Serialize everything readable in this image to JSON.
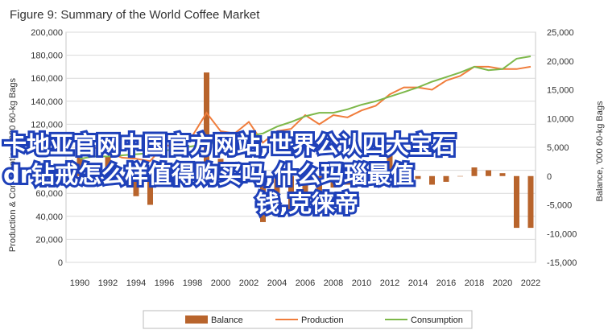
{
  "figure": {
    "title": "Figure 9: Summary of the World Coffee Market"
  },
  "overlay": {
    "lines": [
      "卡地亚官网中国官方网站,世界公认四大宝石",
      "dr钻戒怎么样值得购买吗,什么玛瑙最值",
      "钱,克徕帝"
    ]
  },
  "colors": {
    "balance": "#b8642c",
    "production": "#f07d3c",
    "consumption": "#7db84a",
    "grid": "#d9d9d9"
  },
  "chart_data": {
    "type": "bar",
    "title": "Figure 9: Summary of the World Coffee Market",
    "ylabel_left": "Production & Consumption, '000 60-kg Bags",
    "ylabel_right": "Balance, '000 60-kg Bags",
    "ylim_left": [
      0,
      200000
    ],
    "ylim_right": [
      -15000,
      25000
    ],
    "left_ticks": [
      "200,000",
      "180,000",
      "160,000",
      "140,000",
      "120,000",
      "100,000",
      "80,000",
      "60,000",
      "40,000",
      "20,000",
      "0"
    ],
    "right_ticks": [
      "25,000",
      "20,000",
      "15,000",
      "10,000",
      "5,000",
      "0",
      "-5,000",
      "-10,000",
      "-15,000"
    ],
    "x_ticks": [
      "1990",
      "1992",
      "1994",
      "1996",
      "1998",
      "2000",
      "2002",
      "2004",
      "2006",
      "2008",
      "2010",
      "2012",
      "2014",
      "2016",
      "2018",
      "2020",
      "2022"
    ],
    "x": [
      1990,
      1991,
      1992,
      1993,
      1994,
      1995,
      1996,
      1997,
      1998,
      1999,
      2000,
      2001,
      2002,
      2003,
      2004,
      2005,
      2006,
      2007,
      2008,
      2009,
      2010,
      2011,
      2012,
      2013,
      2014,
      2015,
      2016,
      2017,
      2018,
      2019,
      2020,
      2021,
      2022
    ],
    "grid": true,
    "legend_position": "bottom",
    "series": [
      {
        "name": "Balance",
        "type": "bar",
        "axis": "right",
        "values": [
          3500,
          2000,
          3500,
          -1500,
          -3500,
          -5000,
          -1000,
          500,
          2500,
          18000,
          3000,
          -500,
          0,
          -8000,
          -6000,
          -6500,
          -4500,
          -6500,
          -2000,
          -1500,
          2000,
          1500,
          4000,
          2500,
          -500,
          -1500,
          -1000,
          0,
          1500,
          1000,
          500,
          -9000,
          -9000
        ]
      },
      {
        "name": "Production",
        "type": "line",
        "axis": "left",
        "values": [
          93000,
          100000,
          96000,
          91000,
          90000,
          88000,
          102000,
          100000,
          110000,
          130000,
          114000,
          112000,
          122000,
          104000,
          114000,
          116000,
          128000,
          120000,
          128000,
          126000,
          132000,
          136000,
          146000,
          152000,
          152000,
          150000,
          158000,
          162000,
          170000,
          170000,
          168000,
          168000,
          170000
        ]
      },
      {
        "name": "Consumption",
        "type": "line",
        "axis": "left",
        "values": [
          90000,
          92000,
          92000,
          93000,
          94000,
          95000,
          97000,
          99000,
          101000,
          103000,
          105000,
          107000,
          110000,
          112000,
          118000,
          122000,
          127000,
          130000,
          130000,
          133000,
          137000,
          140000,
          144000,
          148000,
          152000,
          157000,
          161000,
          165000,
          170000,
          167000,
          168000,
          177000,
          179000
        ]
      }
    ]
  }
}
